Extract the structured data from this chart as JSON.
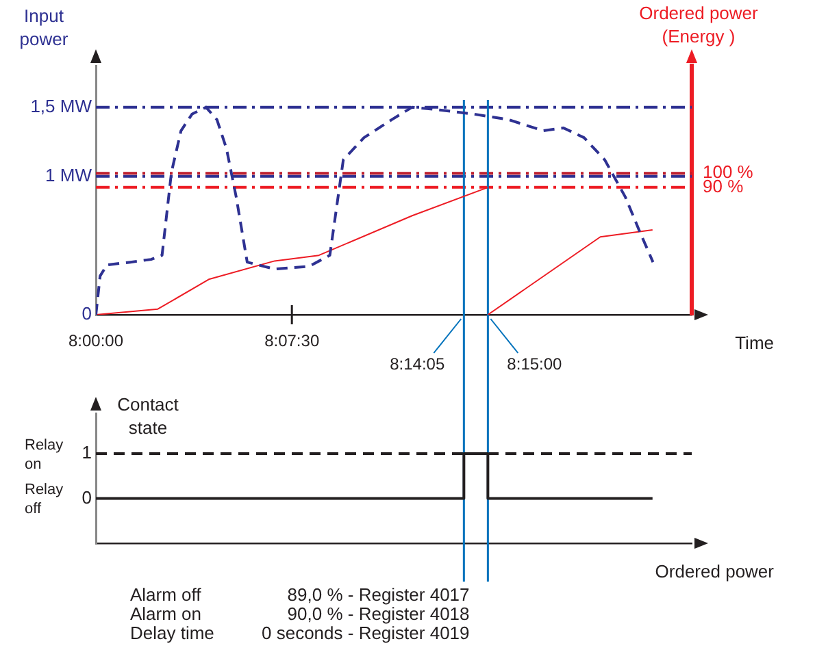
{
  "chart_data": [
    {
      "type": "line",
      "ylabel": "Input power",
      "y2label": "Ordered power\n(Energy )",
      "xlabel": "Time",
      "xlim": [
        8,
        8.38
      ],
      "xticks": [
        {
          "value": 8,
          "label": "8:00:00"
        },
        {
          "value": 8.125,
          "label": "8:07:30"
        }
      ],
      "ylim": [
        0,
        1.8
      ],
      "yticks": [
        {
          "value": 0,
          "label": "0"
        },
        {
          "value": 1,
          "label": "1 MW"
        },
        {
          "value": 1.5,
          "label": "1,5 MW"
        }
      ],
      "y2lim": [
        0,
        176
      ],
      "y2ticks": [
        {
          "value": 90,
          "label": "90 %"
        },
        {
          "value": 100,
          "label": "100 %"
        }
      ],
      "series": [
        {
          "color": "#2e3192",
          "line_style": "dashed",
          "x": [
            8,
            8.0027,
            8.007,
            8.022,
            8.0352,
            8.0422,
            8.0482,
            8.0543,
            8.0613,
            8.0702,
            8.0772,
            8.0833,
            8.0895,
            8.0965,
            8.114,
            8.136,
            8.1492,
            8.1578,
            8.171,
            8.1887,
            8.2017,
            8.2193,
            8.2412,
            8.2632,
            8.2852,
            8.2982,
            8.3113,
            8.3245,
            8.3377,
            8.3465,
            8.3553
          ],
          "values": [
            0,
            0.28,
            0.36,
            0.38,
            0.4,
            0.43,
            1.03,
            1.33,
            1.45,
            1.5,
            1.41,
            1.2,
            0.85,
            0.38,
            0.33,
            0.35,
            0.43,
            1.12,
            1.28,
            1.41,
            1.5,
            1.48,
            1.45,
            1.41,
            1.33,
            1.35,
            1.28,
            1.12,
            0.85,
            0.61,
            0.38
          ]
        },
        {
          "color": "#ed1c24",
          "axis": "y2",
          "line_style": "solid",
          "x": [
            8,
            8.0395,
            8.072,
            8.114,
            8.1422,
            8.2017,
            8.25
          ],
          "values": [
            0,
            4,
            25,
            38,
            42,
            70,
            90
          ]
        },
        {
          "color": "#ed1c24",
          "axis": "y2",
          "line_style": "solid",
          "x": [
            8.25,
            8.3217,
            8.355
          ],
          "values": [
            0,
            55,
            60
          ]
        }
      ],
      "ref_lines": [
        {
          "axis": "y",
          "value": 1.5,
          "color": "#2e3192",
          "line_style": "dashdot"
        },
        {
          "axis": "y",
          "value": 1,
          "color": "#2e3192",
          "line_style": "dashdot"
        },
        {
          "axis": "y2",
          "value": 100,
          "color": "#be1e2d",
          "line_style": "dashdot"
        },
        {
          "axis": "y2",
          "value": 90,
          "color": "#ed1c24",
          "line_style": "dashdot"
        },
        {
          "axis": "x",
          "value": 8.2347,
          "label": "8:14:05",
          "color": "#0072bc",
          "line_style": "solid"
        },
        {
          "axis": "x",
          "value": 8.25,
          "label": "8:15:00",
          "color": "#0072bc",
          "line_style": "solid"
        }
      ],
      "grid": false,
      "legend": false,
      "marker": "none"
    },
    {
      "type": "step",
      "ylabel": "Contact state",
      "xlabel": "Ordered power",
      "xlim": [
        8,
        8.38
      ],
      "ylim": [
        -1,
        1.9
      ],
      "yticks": [
        {
          "value": 0,
          "label": "0"
        },
        {
          "value": 1,
          "label": "1"
        }
      ],
      "tick_labels": "y",
      "series": [
        {
          "color": "#231f20",
          "line_style": "solid",
          "x": [
            8,
            8.2347,
            8.2347,
            8.25,
            8.25,
            8.355
          ],
          "values": [
            0,
            0,
            1,
            1,
            0,
            0
          ]
        }
      ],
      "ref_lines": [
        {
          "axis": "y",
          "value": 1,
          "color": "#231f20",
          "line_style": "dashed"
        },
        {
          "axis": "x",
          "value": 8.2347,
          "color": "#0072bc",
          "line_style": "solid"
        },
        {
          "axis": "x",
          "value": 8.25,
          "color": "#0072bc",
          "line_style": "solid"
        }
      ],
      "annotations": [
        "Relay on",
        "Relay off",
        "Alarm off",
        "89,0 % - Register 4017",
        "Alarm on",
        "90,0 % - Register 4018",
        "Delay time",
        "0 seconds - Register 4019"
      ],
      "grid": false,
      "legend": false,
      "marker": "none"
    }
  ]
}
